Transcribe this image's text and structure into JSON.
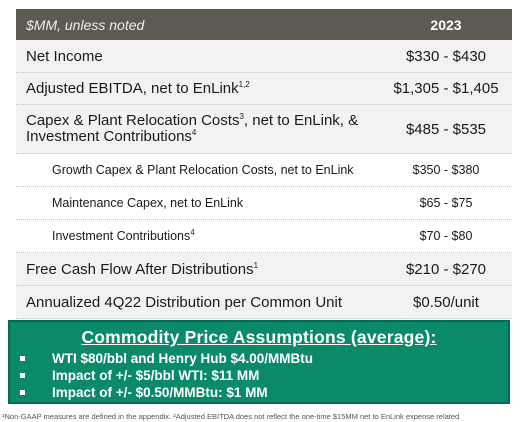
{
  "table": {
    "header_label": "$MM, unless noted",
    "header_year": "2023",
    "rows": [
      {
        "label": "Net Income",
        "sup": "",
        "value": "$330 - $430"
      },
      {
        "label": "Adjusted EBITDA, net to EnLink",
        "sup": "1,2",
        "value": "$1,305 - $1,405"
      },
      {
        "label_a": "Capex & Plant Relocation Costs",
        "sup_a": "3",
        "label_b": ", net to EnLink, &",
        "label_c": "Investment Contributions",
        "sup_c": "4",
        "value": "$485 - $535"
      },
      {
        "label": "Growth Capex & Plant Relocation Costs, net to EnLink",
        "sup": "",
        "value": "$350 - $380"
      },
      {
        "label": "Maintenance Capex, net to EnLink",
        "sup": "",
        "value": "$65 - $75"
      },
      {
        "label": "Investment Contributions",
        "sup": "4",
        "value": "$70 - $80"
      },
      {
        "label": "Free Cash Flow After Distributions",
        "sup": "1",
        "value": "$210 - $270"
      },
      {
        "label": "Annualized 4Q22 Distribution per Common Unit",
        "sup": "",
        "value": "$0.50/unit"
      }
    ]
  },
  "assumptions": {
    "title": "Commodity Price Assumptions (average):",
    "items": [
      "WTI $80/bbl and Henry Hub $4.00/MMBtu",
      "Impact of +/- $5/bbl WTI: $11 MM",
      "Impact of +/- $0.50/MMBtu: $1 MM"
    ]
  },
  "footnote": "¹Non-GAAP measures are defined in the appendix. ²Adjusted EBITDA does not reflect the one-time $15MM net to EnLink expense related"
}
